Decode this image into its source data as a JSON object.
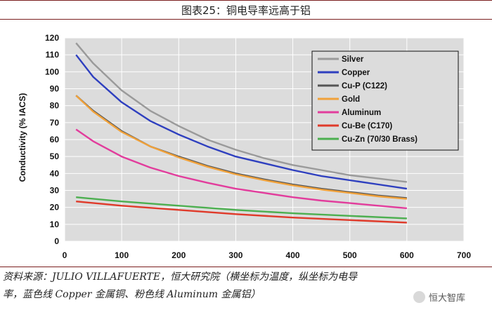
{
  "header": {
    "title": "图表25：铜电导率远高于铝"
  },
  "chart_data": {
    "type": "line",
    "xlabel": "",
    "ylabel": "Conductivity (% IACS)",
    "xlim": [
      0,
      700
    ],
    "ylim": [
      0,
      120
    ],
    "xticks": [
      0,
      100,
      200,
      300,
      400,
      500,
      600,
      700
    ],
    "yticks": [
      0,
      10,
      20,
      30,
      40,
      50,
      60,
      70,
      80,
      90,
      100,
      110,
      120
    ],
    "grid": true,
    "legend_position": "top-right",
    "series": [
      {
        "name": "Silver",
        "color": "#9a9a9a",
        "x": [
          20,
          50,
          100,
          150,
          200,
          250,
          300,
          350,
          400,
          450,
          500,
          550,
          600
        ],
        "y": [
          117,
          105,
          89,
          77,
          68,
          60,
          54,
          49,
          45,
          42,
          39,
          37,
          35
        ]
      },
      {
        "name": "Copper",
        "color": "#2e3fbf",
        "x": [
          20,
          50,
          100,
          150,
          200,
          250,
          300,
          350,
          400,
          450,
          500,
          550,
          600
        ],
        "y": [
          110,
          97,
          82,
          71,
          63,
          56,
          50,
          46,
          42,
          38.5,
          36,
          33.5,
          31
        ]
      },
      {
        "name": "Cu-P (C122)",
        "color": "#555555",
        "x": [
          20,
          50,
          100,
          150,
          200,
          250,
          300,
          350,
          400,
          450,
          500,
          550,
          600
        ],
        "y": [
          86,
          77,
          65,
          56,
          50,
          44.5,
          40,
          36.5,
          33.5,
          31,
          29,
          27,
          25.5
        ]
      },
      {
        "name": "Gold",
        "color": "#f0a13a",
        "x": [
          20,
          50,
          100,
          150,
          200,
          250,
          300,
          350,
          400,
          450,
          500,
          550,
          600
        ],
        "y": [
          86,
          76.5,
          64.5,
          56,
          49.5,
          44,
          39.5,
          36,
          33,
          30.5,
          28.5,
          26.5,
          25
        ]
      },
      {
        "name": "Aluminum",
        "color": "#e23c9c",
        "x": [
          20,
          50,
          100,
          150,
          200,
          250,
          300,
          350,
          400,
          450,
          500,
          550,
          600
        ],
        "y": [
          66,
          59,
          50,
          43.5,
          38.5,
          34.5,
          31,
          28.5,
          26,
          24,
          22.5,
          21,
          19.5
        ]
      },
      {
        "name": "Cu-Be (C170)",
        "color": "#e03a2a",
        "x": [
          20,
          100,
          200,
          300,
          400,
          500,
          600
        ],
        "y": [
          23.5,
          21,
          18.5,
          16,
          14,
          12.5,
          11
        ]
      },
      {
        "name": "Cu-Zn (70/30 Brass)",
        "color": "#4caf50",
        "x": [
          20,
          100,
          200,
          300,
          400,
          500,
          600
        ],
        "y": [
          26,
          23.5,
          21,
          18.5,
          16.5,
          15,
          13.5
        ]
      }
    ]
  },
  "footer": {
    "source_line1": "资料来源：JULIO VILLAFUERTE，恒大研究院（横坐标为温度，纵坐标为电导",
    "source_line2": "率，蓝色线 Copper 金属铜、粉色线 Aluminum 金属铝）",
    "watermark": "恒大智库"
  }
}
